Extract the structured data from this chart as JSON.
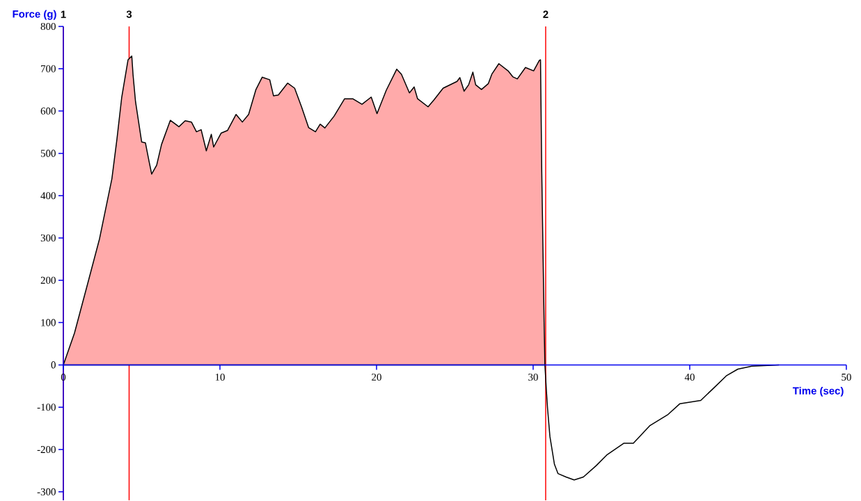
{
  "chart_data": {
    "type": "area",
    "xlabel": "Time (sec)",
    "ylabel": "Force (g)",
    "xlim": [
      0,
      50
    ],
    "ylim": [
      -320,
      800
    ],
    "xticks": [
      0,
      10,
      20,
      30,
      40,
      50
    ],
    "yticks": [
      -300,
      -200,
      -100,
      0,
      100,
      200,
      300,
      400,
      500,
      600,
      700,
      800
    ],
    "ref_lines": [
      {
        "axis": "x",
        "value": 0,
        "color": "#ff0000"
      },
      {
        "axis": "x",
        "value": 4.2,
        "color": "#ff0000"
      },
      {
        "axis": "x",
        "value": 30.8,
        "color": "#ff0000"
      }
    ],
    "annotations": [
      {
        "text": "1",
        "x": 0,
        "y": 800
      },
      {
        "text": "3",
        "x": 4.2,
        "y": 800
      },
      {
        "text": "2",
        "x": 30.8,
        "y": 800
      }
    ],
    "series": [
      {
        "color": "#ffaaaa",
        "x": [
          0,
          0.71,
          1.51,
          2.31,
          3.1,
          3.42,
          3.73,
          4.13,
          4.37,
          4.45,
          4.61,
          5.0,
          5.24,
          5.48,
          5.64,
          5.96,
          6.27,
          6.83,
          7.38,
          7.78,
          8.18,
          8.5,
          8.8,
          9.13,
          9.45,
          9.6,
          10.08,
          10.48,
          11.03,
          11.43,
          11.83,
          12.3,
          12.7,
          13.18,
          13.42,
          13.73,
          14.32,
          14.77,
          15.21,
          15.66,
          16.1,
          16.4,
          16.7,
          17.29,
          17.96,
          18.48,
          19.07,
          19.66,
          20.03,
          20.62,
          21.29,
          21.59,
          22.1,
          22.4,
          22.62,
          23.29,
          23.66,
          24.25,
          25.14,
          25.32,
          25.59,
          25.88,
          26.15,
          26.33,
          26.7,
          27.14,
          27.36,
          27.81,
          28.4,
          28.7,
          28.99,
          29.51,
          30.03,
          30.4,
          30.47,
          30.55,
          30.7,
          30.75
        ],
        "values": [
          0,
          75,
          186,
          298,
          440,
          533,
          633,
          721,
          730,
          686,
          622,
          527,
          525,
          480,
          451,
          472,
          521,
          578,
          563,
          577,
          574,
          551,
          556,
          506,
          545,
          515,
          548,
          554,
          592,
          574,
          592,
          651,
          680,
          674,
          636,
          638,
          666,
          654,
          610,
          561,
          551,
          569,
          560,
          588,
          629,
          629,
          616,
          633,
          594,
          649,
          699,
          687,
          643,
          657,
          629,
          610,
          626,
          654,
          670,
          679,
          647,
          662,
          692,
          662,
          651,
          665,
          687,
          712,
          695,
          681,
          676,
          703,
          695,
          720,
          721,
          456,
          100,
          0
        ]
      },
      {
        "type": "line",
        "color": "#000000",
        "x": [
          30.75,
          30.84,
          30.92,
          31.07,
          31.36,
          31.59,
          32.1,
          32.62,
          33.21,
          34.03,
          34.7,
          35.8,
          36.4,
          37.44,
          38.62,
          39.36,
          40.7,
          41.58,
          42.33,
          43.07,
          43.96,
          45.7
        ],
        "values": [
          0,
          -57,
          -103,
          -169,
          -235,
          -257,
          -265,
          -272,
          -265,
          -238,
          -213,
          -185,
          -185,
          -144,
          -117,
          -92,
          -84,
          -53,
          -26,
          -10,
          -3,
          0
        ]
      }
    ]
  }
}
